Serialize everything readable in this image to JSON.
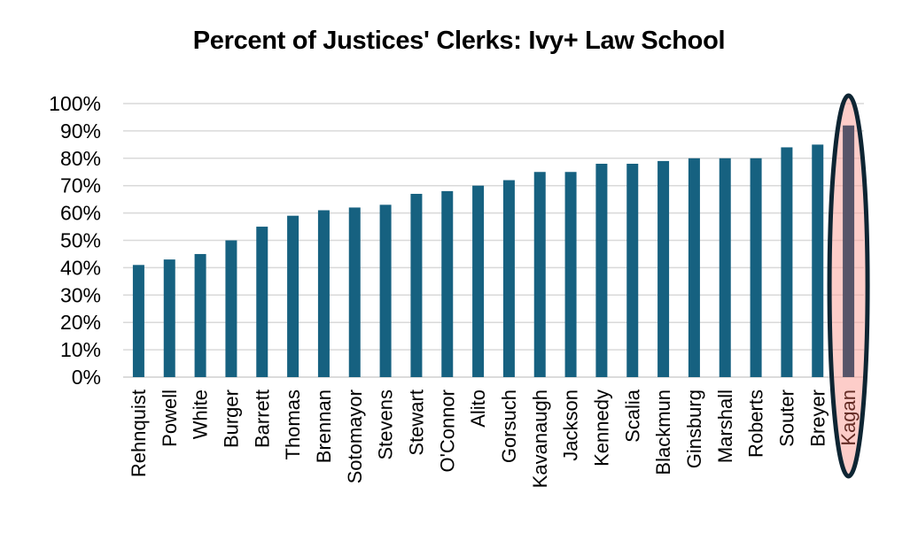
{
  "chart_data": {
    "type": "bar",
    "title": "Percent of Justices' Clerks: Ivy+ Law School",
    "xlabel": "",
    "ylabel": "",
    "categories": [
      "Rehnquist",
      "Powell",
      "White",
      "Burger",
      "Barrett",
      "Thomas",
      "Brennan",
      "Sotomayor",
      "Stevens",
      "Stewart",
      "O'Connor",
      "Alito",
      "Gorsuch",
      "Kavanaugh",
      "Jackson",
      "Kennedy",
      "Scalia",
      "Blackmun",
      "Ginsburg",
      "Marshall",
      "Roberts",
      "Souter",
      "Breyer",
      "Kagan"
    ],
    "values": [
      41,
      43,
      45,
      50,
      55,
      59,
      61,
      62,
      63,
      67,
      68,
      70,
      72,
      75,
      75,
      78,
      78,
      79,
      80,
      80,
      80,
      84,
      85,
      92
    ],
    "ylim": [
      0,
      100
    ],
    "y_tick_step": 10,
    "y_tick_labels": [
      "0%",
      "10%",
      "20%",
      "30%",
      "40%",
      "50%",
      "60%",
      "70%",
      "80%",
      "90%",
      "100%"
    ],
    "grid": "horizontal",
    "legend": "none",
    "colors": {
      "bar": "#166180",
      "gridline": "#D9D9D9",
      "axis_line": "#CFCFCF",
      "axis_text": "#000000",
      "title_text": "#000000",
      "background": "#FFFFFF"
    },
    "highlight": {
      "category": "Kagan",
      "value": 92,
      "shape": "ellipse",
      "bar_color": "#575468",
      "ellipse_fill": "#FCA49C",
      "ellipse_fill_opacity": 0.55,
      "ellipse_stroke": "#0E2533",
      "label_color": "#632B24"
    }
  }
}
